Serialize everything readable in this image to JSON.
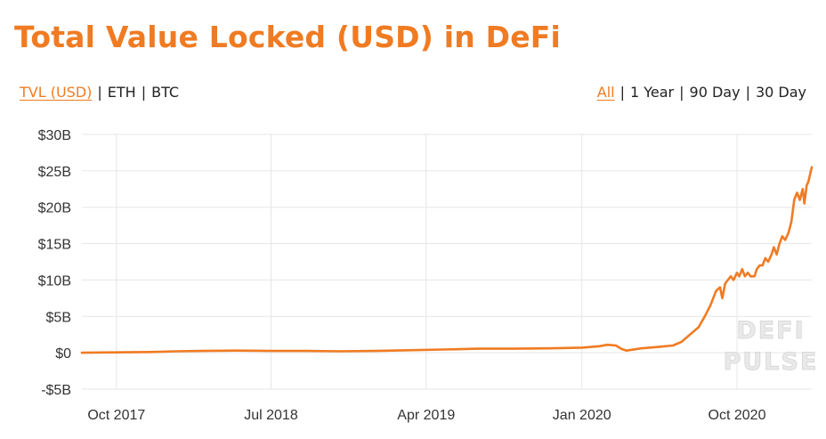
{
  "title": "Total Value Locked (USD) in DeFi",
  "currency_toggle": [
    {
      "label": "TVL (USD)",
      "active": true
    },
    {
      "label": "ETH",
      "active": false
    },
    {
      "label": "BTC",
      "active": false
    }
  ],
  "range_toggle": [
    {
      "label": "All",
      "active": true
    },
    {
      "label": "1 Year",
      "active": false
    },
    {
      "label": "90 Day",
      "active": false
    },
    {
      "label": "30 Day",
      "active": false
    }
  ],
  "separator": "|",
  "watermark": [
    "DEFI",
    "PULSE"
  ],
  "colors": {
    "accent": "#f07b22",
    "grid": "#e6e6e6"
  },
  "chart_data": {
    "type": "line",
    "title": "Total Value Locked (USD) in DeFi",
    "x_axis": {
      "type": "date",
      "range": [
        "2017-08-01",
        "2021-02-10"
      ],
      "ticks": [
        {
          "date": "2017-10-01",
          "label": "Oct 2017"
        },
        {
          "date": "2018-07-01",
          "label": "Jul 2018"
        },
        {
          "date": "2019-04-01",
          "label": "Apr 2019"
        },
        {
          "date": "2020-01-01",
          "label": "Jan 2020"
        },
        {
          "date": "2020-10-01",
          "label": "Oct 2020"
        }
      ]
    },
    "y_axis": {
      "unit": "USD billions",
      "range": [
        -5,
        30
      ],
      "ticks": [
        {
          "value": 30,
          "label": "$30B"
        },
        {
          "value": 25,
          "label": "$25B"
        },
        {
          "value": 20,
          "label": "$20B"
        },
        {
          "value": 15,
          "label": "$15B"
        },
        {
          "value": 10,
          "label": "$10B"
        },
        {
          "value": 5,
          "label": "$5B"
        },
        {
          "value": 0,
          "label": "$0"
        },
        {
          "value": -5,
          "label": "-$5B"
        }
      ]
    },
    "grid": true,
    "legend": "none",
    "series": [
      {
        "points": [
          [
            "2017-08-01",
            0.0
          ],
          [
            "2017-10-01",
            0.05
          ],
          [
            "2017-12-01",
            0.1
          ],
          [
            "2018-01-15",
            0.2
          ],
          [
            "2018-03-01",
            0.25
          ],
          [
            "2018-05-01",
            0.3
          ],
          [
            "2018-07-01",
            0.25
          ],
          [
            "2018-09-01",
            0.25
          ],
          [
            "2018-11-01",
            0.2
          ],
          [
            "2019-01-01",
            0.25
          ],
          [
            "2019-03-01",
            0.35
          ],
          [
            "2019-05-01",
            0.45
          ],
          [
            "2019-07-01",
            0.55
          ],
          [
            "2019-09-01",
            0.55
          ],
          [
            "2019-11-01",
            0.6
          ],
          [
            "2020-01-01",
            0.7
          ],
          [
            "2020-02-01",
            0.9
          ],
          [
            "2020-02-15",
            1.1
          ],
          [
            "2020-03-01",
            1.0
          ],
          [
            "2020-03-12",
            0.5
          ],
          [
            "2020-03-20",
            0.3
          ],
          [
            "2020-04-15",
            0.6
          ],
          [
            "2020-05-15",
            0.8
          ],
          [
            "2020-06-10",
            1.0
          ],
          [
            "2020-06-25",
            1.5
          ],
          [
            "2020-07-10",
            2.5
          ],
          [
            "2020-07-25",
            3.5
          ],
          [
            "2020-08-05",
            5.0
          ],
          [
            "2020-08-15",
            6.5
          ],
          [
            "2020-08-25",
            8.5
          ],
          [
            "2020-09-01",
            9.0
          ],
          [
            "2020-09-05",
            7.5
          ],
          [
            "2020-09-10",
            9.5
          ],
          [
            "2020-09-15",
            10.0
          ],
          [
            "2020-09-20",
            10.5
          ],
          [
            "2020-09-25",
            10.0
          ],
          [
            "2020-10-01",
            11.0
          ],
          [
            "2020-10-05",
            10.5
          ],
          [
            "2020-10-10",
            11.5
          ],
          [
            "2020-10-15",
            10.5
          ],
          [
            "2020-10-20",
            11.0
          ],
          [
            "2020-10-25",
            10.5
          ],
          [
            "2020-11-01",
            10.5
          ],
          [
            "2020-11-05",
            11.5
          ],
          [
            "2020-11-10",
            12.0
          ],
          [
            "2020-11-15",
            12.0
          ],
          [
            "2020-11-20",
            13.0
          ],
          [
            "2020-11-25",
            12.5
          ],
          [
            "2020-12-01",
            13.5
          ],
          [
            "2020-12-05",
            14.5
          ],
          [
            "2020-12-10",
            13.5
          ],
          [
            "2020-12-15",
            15.0
          ],
          [
            "2020-12-20",
            16.0
          ],
          [
            "2020-12-25",
            15.5
          ],
          [
            "2020-12-31",
            16.5
          ],
          [
            "2021-01-05",
            18.0
          ],
          [
            "2021-01-10",
            21.0
          ],
          [
            "2021-01-15",
            22.0
          ],
          [
            "2021-01-20",
            21.0
          ],
          [
            "2021-01-25",
            22.5
          ],
          [
            "2021-01-28",
            20.5
          ],
          [
            "2021-02-01",
            23.0
          ],
          [
            "2021-02-04",
            23.5
          ],
          [
            "2021-02-07",
            24.5
          ],
          [
            "2021-02-10",
            25.5
          ]
        ]
      }
    ]
  }
}
